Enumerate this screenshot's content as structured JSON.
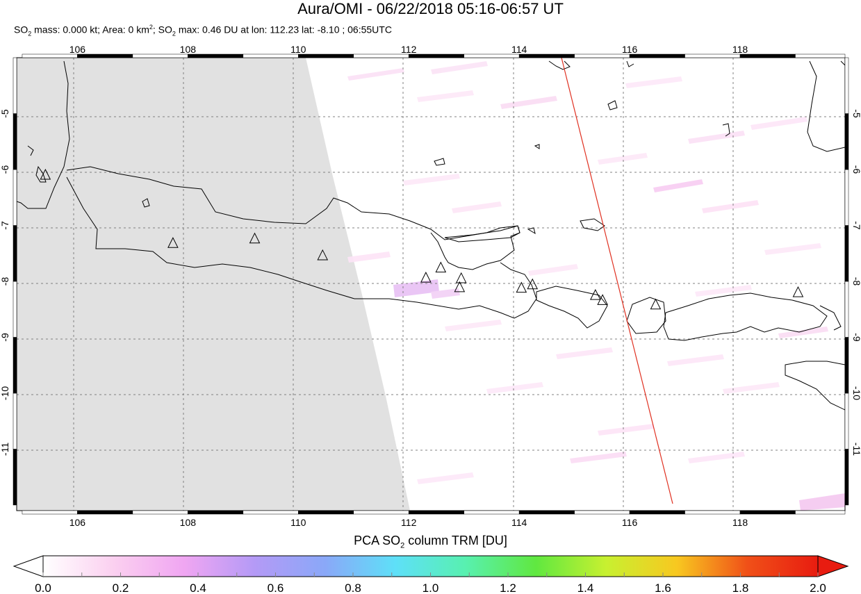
{
  "title": "Aura/OMI - 06/22/2018 05:16-06:57 UT",
  "subtitle": {
    "t1": "SO",
    "s1": "2",
    "t2": " mass: 0.000 kt; Area: 0 km",
    "s2": "2",
    "t3": "; SO",
    "s3": "2",
    "t4": " max: 0.46 DU at lon: 112.23 lat: -8.10 ; 06:55UTC"
  },
  "map": {
    "lon_range": [
      104.9,
      119.9
    ],
    "lat_range": [
      -12.1,
      -4.0
    ],
    "lon_ticks": [
      "106",
      "108",
      "110",
      "112",
      "114",
      "116",
      "118"
    ],
    "lat_ticks": [
      "-5",
      "-6",
      "-7",
      "-8",
      "-9",
      "-10",
      "-11"
    ],
    "no_data_color": "#e1e1e1",
    "track_color": "#e03020",
    "volcanoes": [
      {
        "lon": 105.42,
        "lat": -6.1
      },
      {
        "lon": 107.73,
        "lat": -7.32
      },
      {
        "lon": 109.21,
        "lat": -7.24
      },
      {
        "lon": 110.44,
        "lat": -7.54
      },
      {
        "lon": 112.31,
        "lat": -7.94
      },
      {
        "lon": 112.58,
        "lat": -7.76
      },
      {
        "lon": 112.95,
        "lat": -7.95
      },
      {
        "lon": 112.92,
        "lat": -8.11
      },
      {
        "lon": 114.04,
        "lat": -8.12
      },
      {
        "lon": 114.24,
        "lat": -8.06
      },
      {
        "lon": 115.38,
        "lat": -8.25
      },
      {
        "lon": 115.51,
        "lat": -8.34
      },
      {
        "lon": 116.47,
        "lat": -8.42
      },
      {
        "lon": 119.05,
        "lat": -8.2
      }
    ]
  },
  "colorbar": {
    "title_main": "PCA SO",
    "title_sub": "2",
    "title_rest": " column TRM [DU]",
    "labels": [
      "0.0",
      "0.2",
      "0.4",
      "0.6",
      "0.8",
      "1.0",
      "1.2",
      "1.4",
      "1.6",
      "1.8",
      "2.0"
    ],
    "min": 0.0,
    "max": 2.0,
    "colors": [
      "#ffffff",
      "#fbd0f0",
      "#f0a6f2",
      "#b49af6",
      "#8aa8f8",
      "#5ee0f8",
      "#58f0b0",
      "#60e840",
      "#c8f030",
      "#f8c820",
      "#f05018",
      "#e81c10"
    ]
  }
}
